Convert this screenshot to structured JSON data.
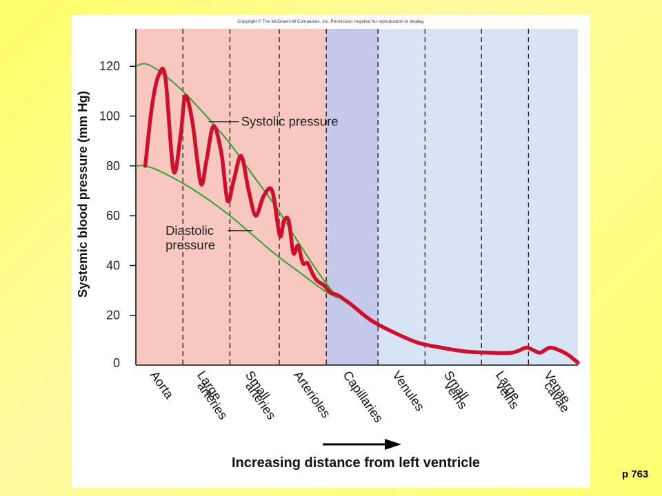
{
  "copyright": "Copyright © The McGraw-Hill Companies, Inc. Permission required for reproduction or display.",
  "page_number": "p 763",
  "colors": {
    "slide_background": "#ffff80",
    "arterial_region": "#f8c8c0",
    "capillary_region": "#c4c8ea",
    "venous_region": "#d6e4f6",
    "pressure_trace": "#d0102a",
    "envelope": "#3aa63a"
  },
  "chart_data": {
    "type": "line",
    "title": "",
    "ylabel": "Systemic blood pressure (mm Hg)",
    "xlabel": "Increasing distance from left ventricle",
    "ylim": [
      0,
      135
    ],
    "yticks": [
      0,
      20,
      40,
      60,
      80,
      100,
      120
    ],
    "grid": false,
    "regions": [
      {
        "label": "Aorta",
        "lines": [
          "Aorta"
        ],
        "start": 0.0,
        "end": 1.0,
        "color": "#f8c8c0"
      },
      {
        "label": "Large arteries",
        "lines": [
          "Large",
          "arteries"
        ],
        "start": 1.0,
        "end": 2.0,
        "color": "#f8c8c0"
      },
      {
        "label": "Small arteries",
        "lines": [
          "Small",
          "arteries"
        ],
        "start": 2.0,
        "end": 3.05,
        "color": "#f8c8c0"
      },
      {
        "label": "Arterioles",
        "lines": [
          "Arterioles"
        ],
        "start": 3.05,
        "end": 4.05,
        "color": "#f8c8c0"
      },
      {
        "label": "Capillaries",
        "lines": [
          "Capillaries"
        ],
        "start": 4.05,
        "end": 5.15,
        "color": "#c4c8ea"
      },
      {
        "label": "Venules",
        "lines": [
          "Venules"
        ],
        "start": 5.15,
        "end": 6.15,
        "color": "#d6e4f6"
      },
      {
        "label": "Small veins",
        "lines": [
          "Small",
          "veins"
        ],
        "start": 6.15,
        "end": 7.35,
        "color": "#d6e4f6"
      },
      {
        "label": "Large veins",
        "lines": [
          "Large",
          "veins"
        ],
        "start": 7.35,
        "end": 8.35,
        "color": "#d6e4f6"
      },
      {
        "label": "Venae cavae",
        "lines": [
          "Venae",
          "cavae"
        ],
        "start": 8.35,
        "end": 9.4,
        "color": "#d6e4f6"
      }
    ],
    "series": [
      {
        "name": "Systolic pressure",
        "role": "envelope",
        "x": [
          0,
          0.2,
          0.5,
          1.0,
          1.5,
          2.0,
          2.5,
          3.0,
          3.5,
          4.0,
          4.3
        ],
        "y": [
          120,
          121,
          118,
          110,
          100,
          89,
          76,
          63,
          48,
          34,
          27
        ]
      },
      {
        "name": "Diastolic pressure",
        "role": "envelope",
        "x": [
          0,
          0.2,
          0.5,
          1.0,
          1.5,
          2.0,
          2.5,
          3.0,
          3.5,
          4.0,
          4.3
        ],
        "y": [
          80,
          80,
          78,
          73,
          67,
          60,
          52,
          44,
          37,
          30,
          27
        ]
      },
      {
        "name": "",
        "role": "pressure",
        "x": [
          0.2,
          0.35,
          0.5,
          0.63,
          0.8,
          0.95,
          1.05,
          1.2,
          1.38,
          1.5,
          1.65,
          1.82,
          1.95,
          2.08,
          2.24,
          2.4,
          2.55,
          2.72,
          2.9,
          3.06,
          3.15,
          3.25,
          3.35,
          3.45,
          3.55,
          3.65,
          3.75,
          3.85,
          4.0,
          4.15,
          4.3,
          4.6,
          5.0,
          5.5,
          6.0,
          6.5,
          7.0,
          7.5,
          8.0,
          8.3,
          8.45,
          8.6,
          8.8,
          9.0,
          9.2,
          9.4
        ],
        "y": [
          80,
          105,
          117,
          115,
          78,
          92,
          108,
          98,
          73,
          82,
          96,
          85,
          66,
          74,
          84,
          70,
          60,
          68,
          70,
          52,
          58,
          58,
          45,
          48,
          41,
          41,
          37,
          34,
          32,
          29,
          28,
          24,
          18,
          13,
          9,
          7,
          5.5,
          5,
          5,
          7,
          6,
          5,
          7,
          6,
          4,
          1
        ]
      }
    ],
    "annotations": [
      {
        "label": "Systolic pressure",
        "lines": [
          "Systolic pressure"
        ],
        "anchor_x": 1.55,
        "anchor_y": 98
      },
      {
        "label": "Diastolic pressure",
        "lines": [
          "Diastolic",
          "pressure"
        ],
        "anchor_x": 2.45,
        "anchor_y": 54
      }
    ]
  }
}
